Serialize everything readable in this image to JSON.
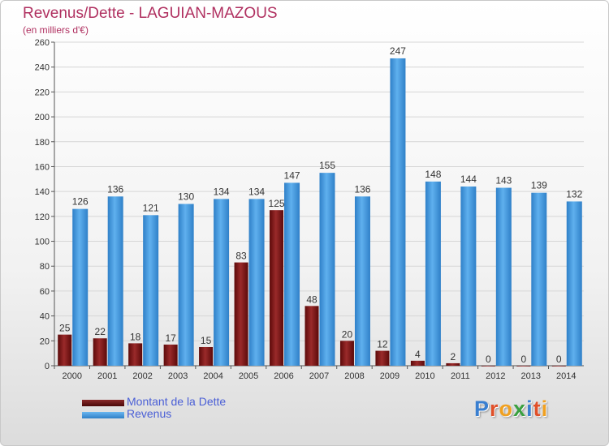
{
  "header": {
    "title": "Revenus/Dette - LAGUIAN-MAZOUS",
    "subtitle": "(en milliers d'€)"
  },
  "chart_data": {
    "type": "bar",
    "categories": [
      "2000",
      "2001",
      "2002",
      "2003",
      "2004",
      "2005",
      "2006",
      "2007",
      "2008",
      "2009",
      "2010",
      "2011",
      "2012",
      "2013",
      "2014"
    ],
    "series": [
      {
        "name": "Montant de la Dette",
        "color": "#8b1a1a",
        "values": [
          25,
          22,
          18,
          17,
          15,
          83,
          125,
          48,
          20,
          12,
          4,
          2,
          0,
          0,
          0
        ]
      },
      {
        "name": "Revenus",
        "color": "#4a9fe0",
        "values": [
          126,
          136,
          121,
          130,
          134,
          134,
          147,
          155,
          136,
          247,
          148,
          144,
          143,
          139,
          132
        ]
      }
    ],
    "ylim": [
      0,
      260
    ],
    "yticks": [
      0,
      20,
      40,
      60,
      80,
      100,
      120,
      140,
      160,
      180,
      200,
      220,
      240,
      260
    ],
    "grid": true,
    "legend": "bottom-left"
  },
  "legend": {
    "items": [
      {
        "label": "Montant de la Dette",
        "color": "#5c0a0a"
      },
      {
        "label": "Revenus",
        "color": "#3a8fd8"
      }
    ]
  },
  "logo": {
    "letters": [
      {
        "ch": "P",
        "color": "#3a7fd0"
      },
      {
        "ch": "r",
        "color": "#e0502a"
      },
      {
        "ch": "o",
        "color": "#f0a020"
      },
      {
        "ch": "x",
        "color": "#3aa040"
      },
      {
        "ch": "i",
        "color": "#3a7fd0"
      },
      {
        "ch": "t",
        "color": "#e0502a"
      },
      {
        "ch": "i",
        "color": "#f0a020"
      }
    ]
  }
}
